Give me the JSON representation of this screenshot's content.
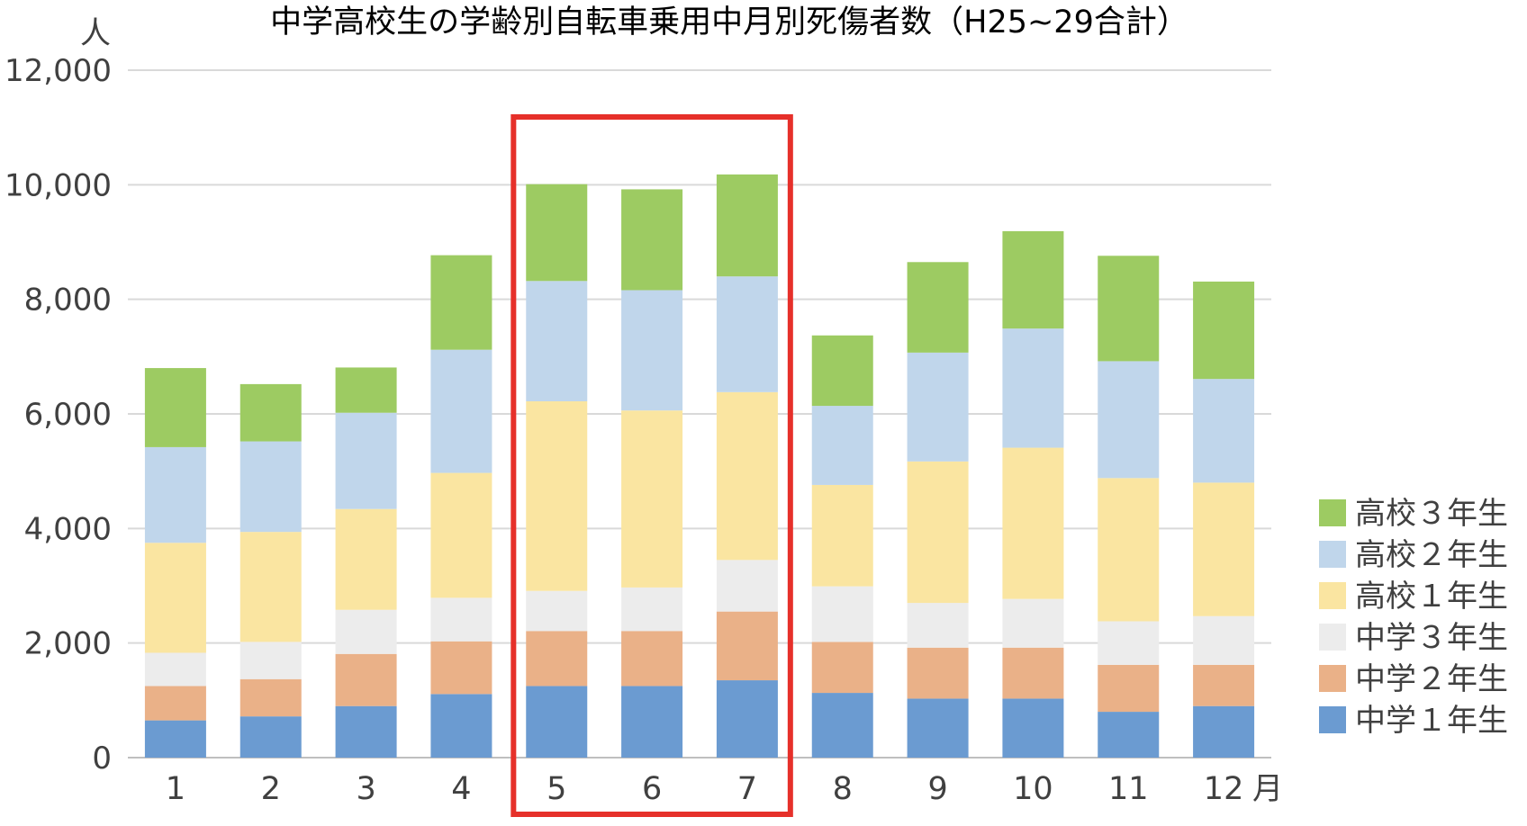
{
  "chart_data": {
    "type": "bar",
    "stacked": true,
    "title": "中学高校生の学齢別自転車乗用中月別死傷者数（H25~29合計）",
    "ylabel": "人",
    "xlabel": "月",
    "ylim": [
      0,
      12000
    ],
    "yticks": [
      "0",
      "2,000",
      "4,000",
      "6,000",
      "8,000",
      "10,000",
      "12,000"
    ],
    "grid": true,
    "legend_position": "right",
    "categories": [
      "1",
      "2",
      "3",
      "4",
      "5",
      "6",
      "7",
      "8",
      "9",
      "10",
      "11",
      "12"
    ],
    "series": [
      {
        "name": "中学１年生",
        "color": "#6b9bd1",
        "values": [
          650,
          720,
          900,
          1110,
          1250,
          1250,
          1350,
          1130,
          1030,
          1030,
          800,
          900
        ]
      },
      {
        "name": "中学２年生",
        "color": "#eab188",
        "values": [
          600,
          650,
          910,
          920,
          960,
          960,
          1200,
          890,
          890,
          890,
          820,
          720
        ]
      },
      {
        "name": "中学３年生",
        "color": "#ececec",
        "values": [
          580,
          650,
          770,
          760,
          700,
          760,
          900,
          970,
          780,
          850,
          760,
          850
        ]
      },
      {
        "name": "高校１年生",
        "color": "#fae5a1",
        "values": [
          1920,
          1920,
          1760,
          2180,
          3310,
          3090,
          2930,
          1770,
          2470,
          2640,
          2500,
          2330
        ]
      },
      {
        "name": "高校２年生",
        "color": "#c0d6eb",
        "values": [
          1670,
          1580,
          1680,
          2150,
          2100,
          2100,
          2020,
          1380,
          1900,
          2080,
          2040,
          1810
        ]
      },
      {
        "name": "高校３年生",
        "color": "#9dcb62",
        "values": [
          1380,
          1000,
          790,
          1650,
          1690,
          1760,
          1780,
          1230,
          1580,
          1700,
          1840,
          1700
        ]
      }
    ],
    "highlight": {
      "categories": [
        "5",
        "6",
        "7"
      ],
      "color": "#e6302a"
    }
  }
}
